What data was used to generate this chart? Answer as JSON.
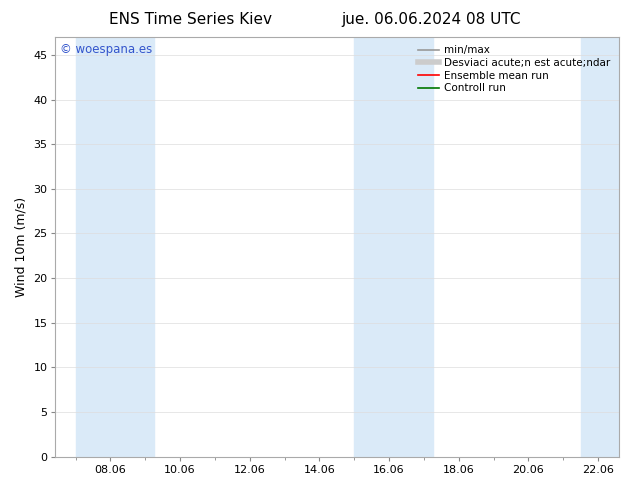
{
  "title_left": "ENS Time Series Kiev",
  "title_right": "jue. 06.06.2024 08 UTC",
  "ylabel": "Wind 10m (m/s)",
  "watermark": "© woespana.es",
  "ylim": [
    0,
    47
  ],
  "yticks": [
    0,
    5,
    10,
    15,
    20,
    25,
    30,
    35,
    40,
    45
  ],
  "xtick_labels": [
    "08.06",
    "10.06",
    "12.06",
    "14.06",
    "16.06",
    "18.06",
    "20.06",
    "22.06"
  ],
  "shade_color": "#daeaf8",
  "background_color": "#ffffff",
  "watermark_color": "#3355cc",
  "legend_label1": "min/max",
  "legend_label2": "Desviaci acute;n est acute;ndar",
  "legend_label3": "Ensemble mean run",
  "legend_label4": "Controll run",
  "legend_color1": "#999999",
  "legend_color2": "#cccccc",
  "legend_color3": "#ff0000",
  "legend_color4": "#007700",
  "title_fontsize": 11,
  "axis_fontsize": 9,
  "tick_fontsize": 8,
  "legend_fontsize": 7.5
}
